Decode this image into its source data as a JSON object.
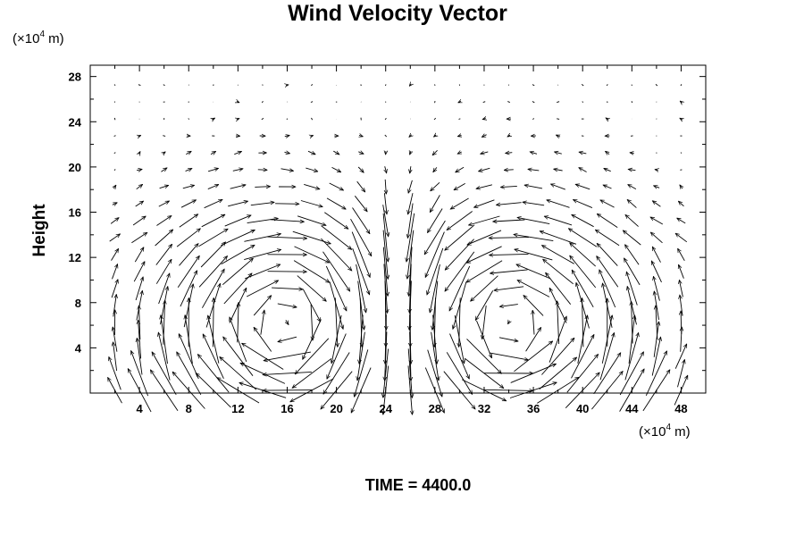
{
  "chart_data": {
    "type": "vector",
    "title": "Wind Velocity Vector",
    "ylabel": "Height",
    "xunit": {
      "prefix": "(×10",
      "exp": "4",
      "suffix": " m)"
    },
    "yunit": {
      "prefix": "(×10",
      "exp": "4",
      "suffix": " m)"
    },
    "xlim": [
      0,
      50
    ],
    "ylim": [
      0,
      29
    ],
    "xticks": [
      4,
      8,
      12,
      16,
      20,
      24,
      28,
      32,
      36,
      40,
      44,
      48
    ],
    "yticks": [
      4,
      8,
      12,
      16,
      20,
      24,
      28
    ],
    "grid": false,
    "footer": "TIME = 4400.0",
    "vector_field": {
      "x_start": 2,
      "x_step": 2,
      "x_count": 24,
      "y_start": 0.25,
      "y_step": 1.5,
      "y_count": 19,
      "left_cell_center_x": 17,
      "right_cell_center_x": 33,
      "cell_center_height": 6,
      "axis_x": 25,
      "domain_width": 50,
      "domain_height": 29
    }
  }
}
